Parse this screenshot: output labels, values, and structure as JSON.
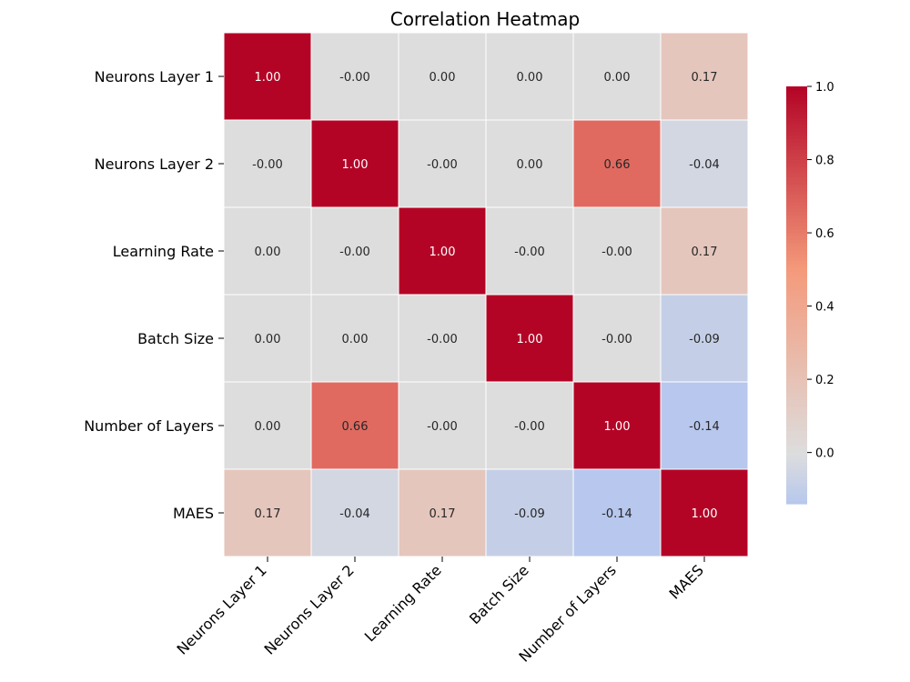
{
  "chart_data": {
    "type": "heatmap",
    "title": "Correlation Heatmap",
    "xlabel": "",
    "ylabel": "",
    "x_categories": [
      "Neurons Layer 1",
      "Neurons Layer 2",
      "Learning Rate",
      "Batch Size",
      "Number of Layers",
      "MAES"
    ],
    "y_categories": [
      "Neurons Layer 1",
      "Neurons Layer 2",
      "Learning Rate",
      "Batch Size",
      "Number of Layers",
      "MAES"
    ],
    "values": [
      [
        1.0,
        -0.0,
        0.0,
        0.0,
        0.0,
        0.17
      ],
      [
        -0.0,
        1.0,
        -0.0,
        0.0,
        0.66,
        -0.04
      ],
      [
        0.0,
        -0.0,
        1.0,
        -0.0,
        -0.0,
        0.17
      ],
      [
        0.0,
        0.0,
        -0.0,
        1.0,
        -0.0,
        -0.09
      ],
      [
        0.0,
        0.66,
        -0.0,
        -0.0,
        1.0,
        -0.14
      ],
      [
        0.17,
        -0.04,
        0.17,
        -0.09,
        -0.14,
        1.0
      ]
    ],
    "cell_labels": [
      [
        "1.00",
        "-0.00",
        "0.00",
        "0.00",
        "0.00",
        "0.17"
      ],
      [
        "-0.00",
        "1.00",
        "-0.00",
        "0.00",
        "0.66",
        "-0.04"
      ],
      [
        "0.00",
        "-0.00",
        "1.00",
        "-0.00",
        "-0.00",
        "0.17"
      ],
      [
        "0.00",
        "0.00",
        "-0.00",
        "1.00",
        "-0.00",
        "-0.09"
      ],
      [
        "0.00",
        "0.66",
        "-0.00",
        "-0.00",
        "1.00",
        "-0.14"
      ],
      [
        "0.17",
        "-0.04",
        "0.17",
        "-0.09",
        "-0.14",
        "1.00"
      ]
    ],
    "colormap": "coolwarm",
    "color_range": [
      -0.14,
      1.0
    ],
    "colorbar": {
      "ticks": [
        0.0,
        0.2,
        0.4,
        0.6,
        0.8,
        1.0
      ],
      "tick_labels": [
        "0.0",
        "0.2",
        "0.4",
        "0.6",
        "0.8",
        "1.0"
      ],
      "placement": "right"
    },
    "grid": false
  }
}
